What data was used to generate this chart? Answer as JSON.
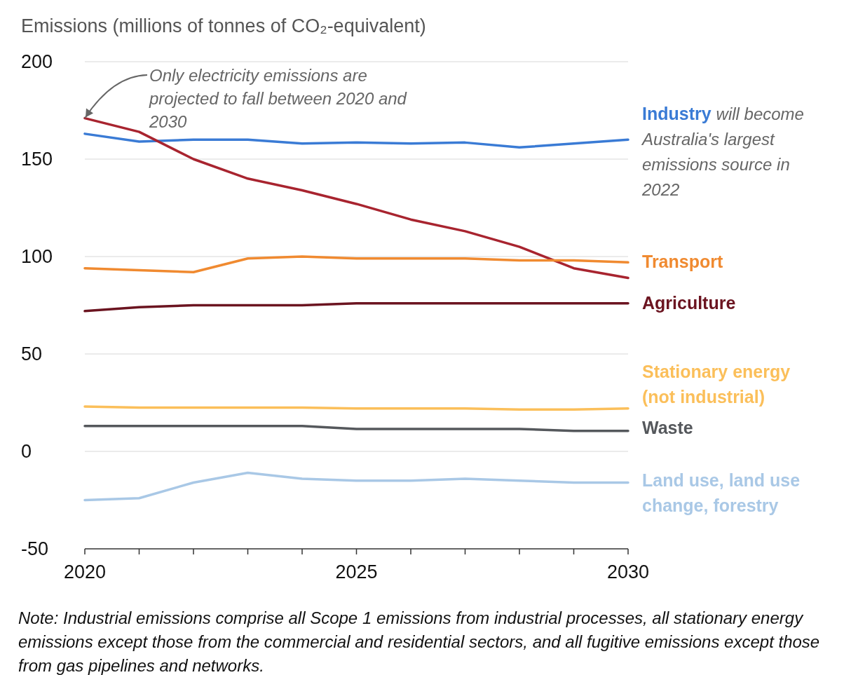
{
  "chart_data": {
    "type": "line",
    "ylabel": "Emissions (millions of tonnes of CO₂-equivalent)",
    "x": [
      2020,
      2021,
      2022,
      2023,
      2024,
      2025,
      2026,
      2027,
      2028,
      2029,
      2030
    ],
    "xlim": [
      2020,
      2030
    ],
    "xticks": [
      2020,
      {
        "value": 2021,
        "label": null
      },
      {
        "value": 2022,
        "label": null
      },
      {
        "value": 2023,
        "label": null
      },
      {
        "value": 2024,
        "label": null
      },
      2025,
      {
        "value": 2026,
        "label": null
      },
      {
        "value": 2027,
        "label": null
      },
      {
        "value": 2028,
        "label": null
      },
      {
        "value": 2029,
        "label": null
      },
      2030
    ],
    "ylim": [
      -50,
      200
    ],
    "yticks": [
      -50,
      0,
      50,
      100,
      150,
      200
    ],
    "grid": "y",
    "line_style": "solid",
    "series": [
      {
        "name": "Industry",
        "color": "#3a7bd5",
        "values": [
          163,
          159,
          160,
          160,
          158,
          158.5,
          158,
          158.5,
          156,
          158,
          160
        ]
      },
      {
        "color": "#a8242f",
        "values": [
          171,
          164,
          150,
          140,
          134,
          127,
          119,
          113,
          105,
          94,
          89
        ]
      },
      {
        "name": "Transport",
        "color": "#f08a30",
        "values": [
          94,
          93,
          92,
          99,
          100,
          99,
          99,
          99,
          98,
          98,
          97
        ]
      },
      {
        "name": "Agriculture",
        "color": "#6b1420",
        "values": [
          72,
          74,
          75,
          75,
          75,
          76,
          76,
          76,
          76,
          76,
          76
        ]
      },
      {
        "name": "Stationary energy (not industrial)",
        "color": "#fbbf5a",
        "values": [
          23,
          22.5,
          22.5,
          22.5,
          22.5,
          22,
          22,
          22,
          21.5,
          21.5,
          22
        ]
      },
      {
        "name": "Waste",
        "color": "#55585c",
        "values": [
          13,
          13,
          13,
          13,
          13,
          11.5,
          11.5,
          11.5,
          11.5,
          10.5,
          10.5
        ]
      },
      {
        "name": "Land use, land use change, forestry",
        "color": "#a9c8e6",
        "values": [
          -25,
          -24,
          -16,
          -11,
          -14,
          -15,
          -15,
          -14,
          -15,
          -16,
          -16
        ]
      }
    ],
    "annotations": [
      {
        "text": "Only electricity emissions are projected to fall between 2020 and 2030",
        "x": 2020,
        "y": 171
      },
      "will become Australia's largest emissions source in 2022",
      "Note: Industrial emissions comprise all Scope 1 emissions from industrial processes, all stationary energy emissions except those from the commercial and residential sectors, and all fugitive emissions except those from gas pipelines and networks."
    ]
  }
}
